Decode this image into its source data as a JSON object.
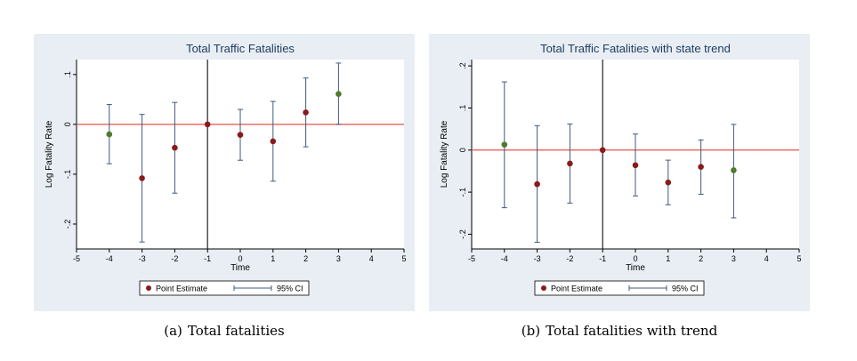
{
  "chart_data": [
    {
      "type": "scatter",
      "subtype": "event-study with 95% CI error bars",
      "title": "Total Traffic Fatalities",
      "xlabel": "Time",
      "ylabel": "Log Fatality Rate",
      "xlim": [
        -5,
        5
      ],
      "ylim": [
        -0.25,
        0.13
      ],
      "xticks": [
        -5,
        -4,
        -3,
        -2,
        -1,
        0,
        1,
        2,
        3,
        4,
        5
      ],
      "yticks": [
        -0.2,
        -0.1,
        0,
        0.1
      ],
      "ytick_labels": [
        "-.2",
        "-.1",
        "0",
        ".1"
      ],
      "reference_hline": 0,
      "reference_vline": -1,
      "grid": false,
      "legend": {
        "placement": "bottom-center",
        "entries": [
          "Point Estimate",
          "95% CI"
        ]
      },
      "colors": {
        "estimate": "#8b1a1a",
        "estimate_alt": "#4f7a2c",
        "ci": "#3d5a80",
        "hline": "#e8504a",
        "vline": "#222222"
      },
      "x": [
        -4,
        -3,
        -2,
        -1,
        0,
        1,
        2,
        3
      ],
      "estimate": [
        -0.02,
        -0.108,
        -0.047,
        0.0,
        -0.021,
        -0.034,
        0.024,
        0.061
      ],
      "ci_low": [
        -0.079,
        -0.236,
        -0.138,
        0.0,
        -0.072,
        -0.114,
        -0.045,
        0.0
      ],
      "ci_high": [
        0.04,
        0.02,
        0.044,
        0.0,
        0.03,
        0.046,
        0.093,
        0.123
      ],
      "point_color": [
        "alt",
        "main",
        "main",
        "main",
        "main",
        "main",
        "main",
        "alt"
      ]
    },
    {
      "type": "scatter",
      "subtype": "event-study with 95% CI error bars",
      "title": "Total Traffic Fatalities with state trend",
      "xlabel": "Time",
      "ylabel": "Log Fatality Rate",
      "xlim": [
        -5,
        5
      ],
      "ylim": [
        -0.235,
        0.215
      ],
      "xticks": [
        -5,
        -4,
        -3,
        -2,
        -1,
        0,
        1,
        2,
        3,
        4,
        5
      ],
      "yticks": [
        -0.2,
        -0.1,
        0,
        0.1,
        0.2
      ],
      "ytick_labels": [
        "-.2",
        "-.1",
        "0",
        ".1",
        ".2"
      ],
      "reference_hline": 0,
      "reference_vline": -1,
      "grid": false,
      "legend": {
        "placement": "bottom-center",
        "entries": [
          "Point Estimate",
          "95% CI"
        ]
      },
      "colors": {
        "estimate": "#8b1a1a",
        "estimate_alt": "#4f7a2c",
        "ci": "#3d5a80",
        "hline": "#e8504a",
        "vline": "#222222"
      },
      "x": [
        -4,
        -3,
        -2,
        -1,
        0,
        1,
        2,
        3
      ],
      "estimate": [
        0.013,
        -0.081,
        -0.032,
        0.0,
        -0.036,
        -0.077,
        -0.04,
        -0.048
      ],
      "ci_low": [
        -0.137,
        -0.219,
        -0.126,
        0.0,
        -0.109,
        -0.13,
        -0.105,
        -0.161
      ],
      "ci_high": [
        0.162,
        0.058,
        0.062,
        0.0,
        0.038,
        -0.024,
        0.024,
        0.061
      ],
      "point_color": [
        "alt",
        "main",
        "main",
        "main",
        "main",
        "main",
        "main",
        "alt"
      ]
    }
  ],
  "captions": [
    {
      "tag": "(a)",
      "text": "Total fatalities"
    },
    {
      "tag": "(b)",
      "text": "Total fatalities with trend"
    }
  ]
}
